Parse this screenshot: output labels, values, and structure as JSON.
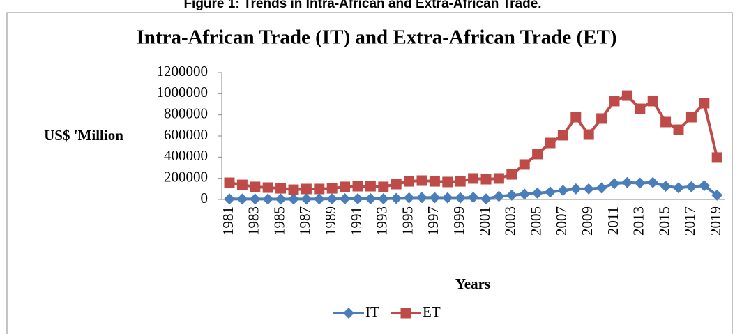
{
  "chart_data": {
    "type": "line",
    "caption": "Figure 1: Trends in Intra-African and Extra-African Trade.",
    "title": "Intra-African Trade (IT) and Extra-African Trade (ET)",
    "x_label": "Years",
    "y_label": "US$ 'Million",
    "categories": [
      "1981",
      null,
      "1983",
      null,
      "1985",
      null,
      "1987",
      null,
      "1989",
      null,
      "1991",
      null,
      "1993",
      null,
      "1995",
      null,
      "1997",
      null,
      "1999",
      null,
      "2001",
      null,
      "2003",
      null,
      "2005",
      null,
      "2007",
      null,
      "2009",
      null,
      "2011",
      null,
      "2013",
      null,
      "2015",
      null,
      "2017",
      null,
      "2019"
    ],
    "series": [
      {
        "name": "IT",
        "color": "#4a7ebb",
        "marker": "diamond",
        "values": [
          5000,
          4000,
          4000,
          4000,
          3000,
          4000,
          4000,
          5000,
          6000,
          7000,
          7000,
          7000,
          7000,
          10000,
          15000,
          18000,
          17000,
          16000,
          16000,
          20000,
          5000,
          30000,
          40000,
          50000,
          60000,
          70000,
          85000,
          100000,
          100000,
          110000,
          150000,
          160000,
          155000,
          160000,
          125000,
          110000,
          120000,
          130000,
          40000
        ]
      },
      {
        "name": "ET",
        "color": "#be4b48",
        "marker": "square",
        "values": [
          158000,
          138000,
          119000,
          112000,
          105000,
          92000,
          99000,
          99000,
          105000,
          119000,
          125000,
          125000,
          119000,
          145000,
          171000,
          178000,
          171000,
          165000,
          171000,
          198000,
          191000,
          198000,
          237000,
          330000,
          429000,
          534000,
          607000,
          778000,
          613000,
          765000,
          930000,
          982000,
          857000,
          930000,
          732000,
          659000,
          778000,
          910000,
          396000
        ]
      }
    ],
    "ylim": [
      0,
      1200000
    ],
    "yticks": [
      0,
      200000,
      400000,
      600000,
      800000,
      1000000,
      1200000
    ],
    "legend": "bottom",
    "grid": false
  }
}
